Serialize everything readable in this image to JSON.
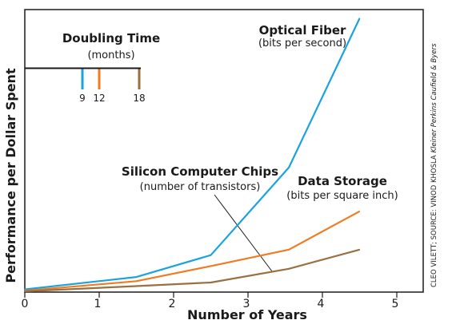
{
  "chart_data": {
    "type": "line",
    "xlabel": "Number of Years",
    "ylabel": "Performance per Dollar Spent",
    "xticks": [
      "0",
      "1",
      "2",
      "3",
      "4",
      "5"
    ],
    "xlim": [
      0,
      5.3
    ],
    "ylim": [
      0,
      1
    ],
    "grid": false,
    "series": [
      {
        "name": "Optical Fiber",
        "sublabel": "(bits per second)",
        "color": "#1aa3dd",
        "x": [
          0,
          1.5,
          2.5,
          3.55,
          4.5
        ],
        "y": [
          0.01,
          0.055,
          0.135,
          0.455,
          1.0
        ]
      },
      {
        "name": "Data Storage",
        "sublabel": "(bits per square inch)",
        "color": "#f07b22",
        "x": [
          0,
          1.5,
          2.5,
          3.55,
          4.5
        ],
        "y": [
          0.005,
          0.04,
          0.095,
          0.155,
          0.295
        ]
      },
      {
        "name": "Silicon Computer Chips",
        "sublabel": "(number of transistors)",
        "color": "#9a7042",
        "x": [
          0,
          1.5,
          2.5,
          3.55,
          4.5
        ],
        "y": [
          0.003,
          0.022,
          0.035,
          0.085,
          0.155
        ]
      }
    ],
    "legend": {
      "title": "Doubling Time",
      "subtitle": "(months)",
      "entries": [
        {
          "label": "9",
          "color": "#1aa3dd"
        },
        {
          "label": "12",
          "color": "#f07b22"
        },
        {
          "label": "18",
          "color": "#9a7042"
        }
      ]
    }
  },
  "credit": {
    "prefix": "CLEO VILETT; SOURCE: VINOD KHOSLA ",
    "italic": "Kleiner Perkins Caufield & Byers"
  }
}
